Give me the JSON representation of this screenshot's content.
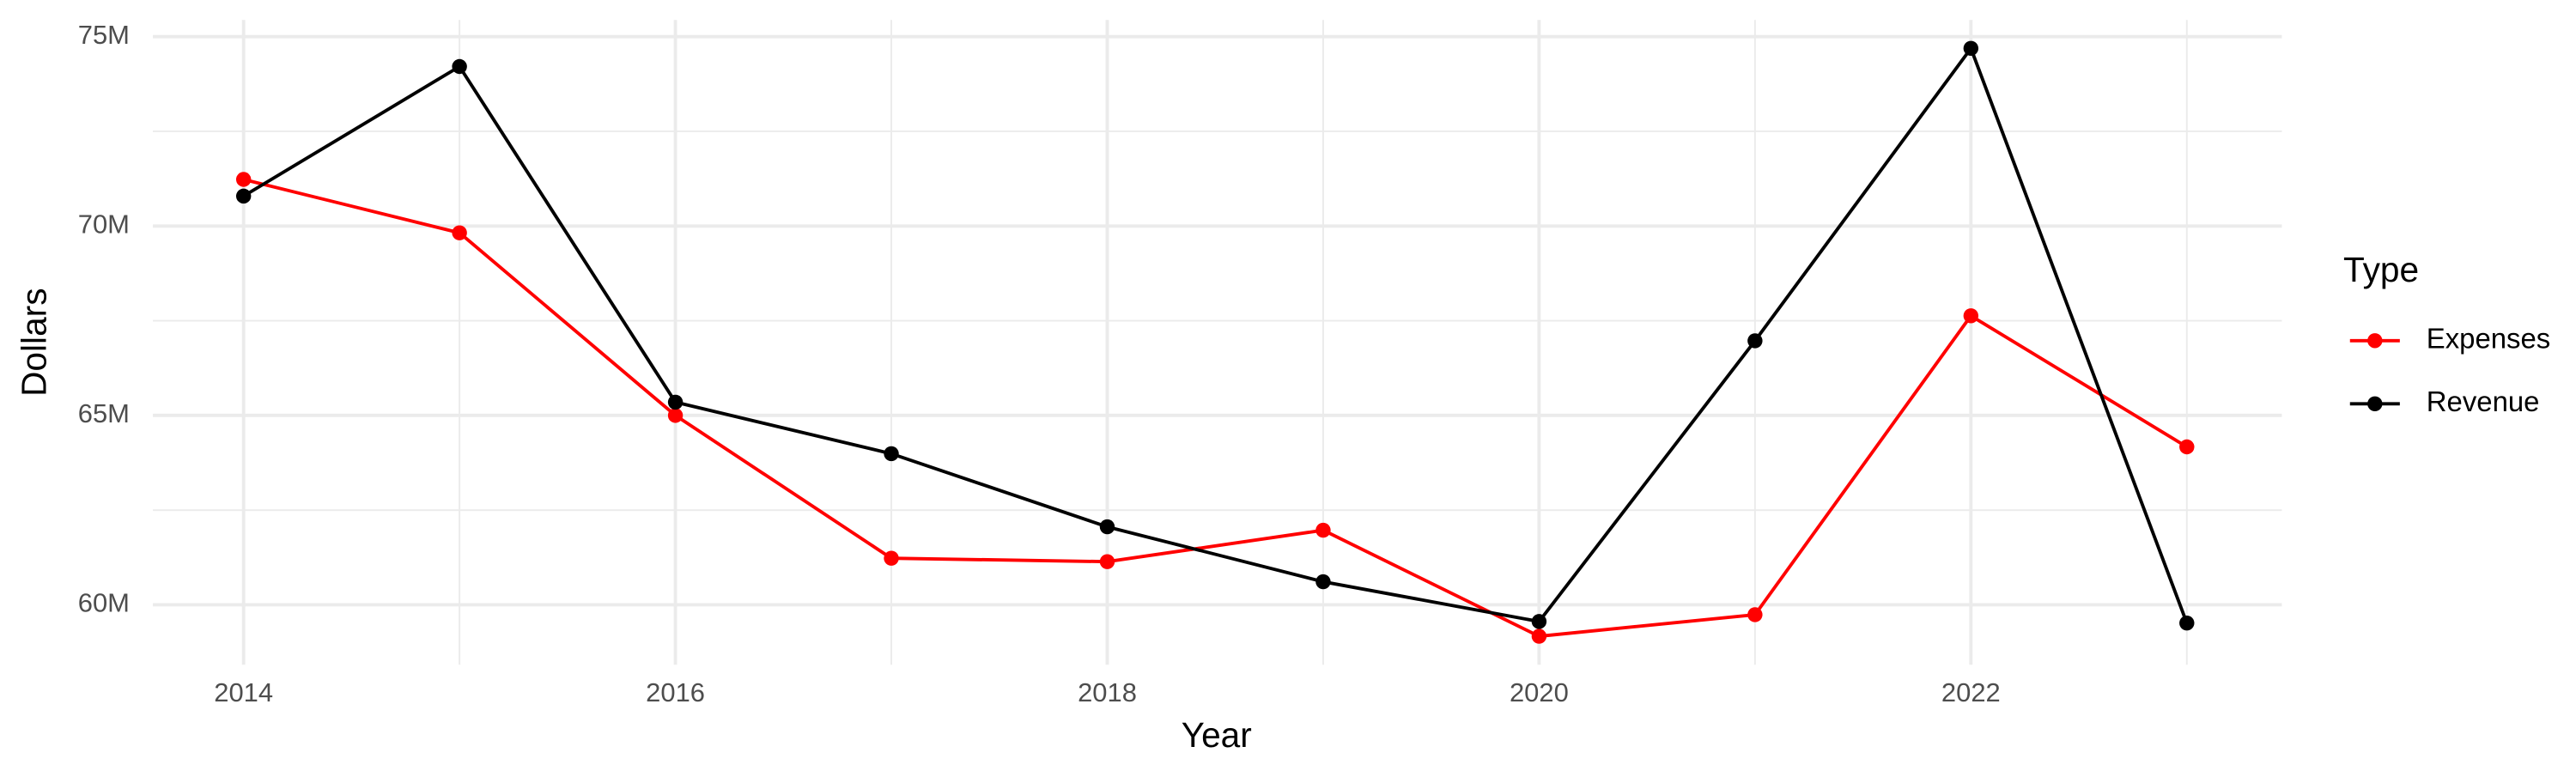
{
  "chart_data": {
    "type": "line",
    "x_label": "Year",
    "y_label": "Dollars",
    "legend_title": "Type",
    "legend_position": "right",
    "x": [
      2014,
      2015,
      2016,
      2017,
      2018,
      2019,
      2020,
      2021,
      2022,
      2023
    ],
    "series": [
      {
        "name": "Expenses",
        "color": "#ff0000",
        "values": [
          71230000,
          69820000,
          65000000,
          61230000,
          61140000,
          61970000,
          59170000,
          59740000,
          67630000,
          64170000
        ]
      },
      {
        "name": "Revenue",
        "color": "#000000",
        "values": [
          70790000,
          74210000,
          65350000,
          63990000,
          62060000,
          60610000,
          59560000,
          66970000,
          74690000,
          59520000
        ]
      }
    ],
    "xlim": [
      2013.58,
      2023.44
    ],
    "xticks": [
      2014,
      2016,
      2018,
      2020,
      2022
    ],
    "ylim": [
      58420000,
      75440000
    ],
    "yticks": [
      {
        "value": 60000000,
        "label": "60M"
      },
      {
        "value": 65000000,
        "label": "65M"
      },
      {
        "value": 70000000,
        "label": "70M"
      },
      {
        "value": 75000000,
        "label": "75M"
      }
    ],
    "grid": true,
    "minor_grid": true
  }
}
